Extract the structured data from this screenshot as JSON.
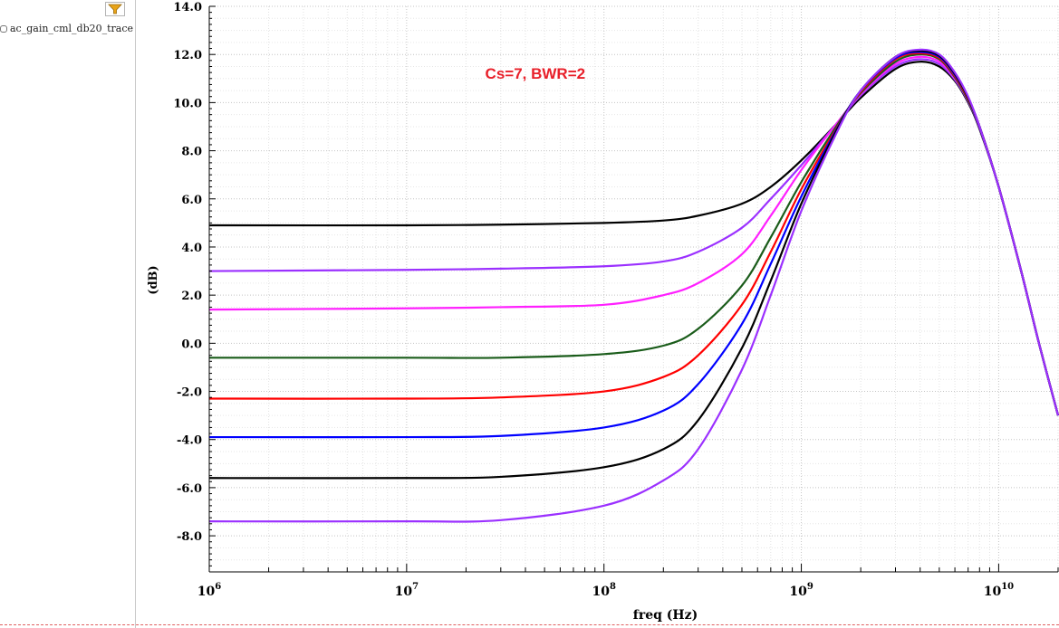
{
  "legend": {
    "filter_icon": "filter-icon",
    "trace_name": "ac_gain_cml_db20_trace"
  },
  "colors": {
    "annotation": "#e8202a",
    "grid": "#d9d9d9",
    "axis": "#000000"
  },
  "chart_data": {
    "type": "line",
    "title": "",
    "xlabel": "freq (Hz)",
    "ylabel": "(dB)",
    "x_scale": "log",
    "xlim": [
      1000000,
      20000000000
    ],
    "ylim": [
      -9.5,
      14.0
    ],
    "grid": true,
    "x_tick_labels": [
      {
        "value": 1000000,
        "base": "10",
        "exp": "6"
      },
      {
        "value": 10000000,
        "base": "10",
        "exp": "7"
      },
      {
        "value": 100000000,
        "base": "10",
        "exp": "8"
      },
      {
        "value": 1000000000,
        "base": "10",
        "exp": "9"
      },
      {
        "value": 10000000000,
        "base": "10",
        "exp": "10"
      }
    ],
    "y_ticks": [
      14.0,
      12.0,
      10.0,
      8.0,
      6.0,
      4.0,
      2.0,
      0.0,
      -2.0,
      -4.0,
      -6.0,
      -8.0
    ],
    "y_tick_labels": [
      "14.0",
      "12.0",
      "10.0",
      "8.0",
      "6.0",
      "4.0",
      "2.0",
      "0.0",
      "-2.0",
      "-4.0",
      "-6.0",
      "-8.0"
    ],
    "annotation": {
      "text": "Cs=7, BWR=2",
      "x": 25000000,
      "y": 11.0
    },
    "x": [
      1000000,
      10000000,
      30000000,
      100000000,
      200000000,
      300000000,
      500000000,
      700000000,
      1000000000,
      1500000000,
      2000000000,
      3000000000,
      4000000000,
      5000000000,
      6000000000,
      7000000000,
      8000000000,
      10000000000,
      13000000000,
      16000000000,
      20000000000
    ],
    "series": [
      {
        "color": "#000000",
        "values": [
          4.9,
          4.9,
          4.93,
          5.0,
          5.1,
          5.3,
          5.8,
          6.5,
          7.6,
          9.1,
          10.2,
          11.4,
          11.7,
          11.5,
          10.9,
          10.0,
          8.9,
          6.5,
          3.0,
          0.0,
          -3.0
        ]
      },
      {
        "color": "#9b30ff",
        "values": [
          3.0,
          3.05,
          3.1,
          3.2,
          3.4,
          3.8,
          4.8,
          6.0,
          7.4,
          9.1,
          10.3,
          11.5,
          11.8,
          11.6,
          10.95,
          10.05,
          8.95,
          6.5,
          3.0,
          0.0,
          -3.0
        ]
      },
      {
        "color": "#ff20ff",
        "values": [
          1.4,
          1.45,
          1.5,
          1.6,
          2.0,
          2.5,
          3.7,
          5.3,
          7.2,
          9.1,
          10.35,
          11.6,
          11.9,
          11.7,
          11.0,
          10.1,
          9.0,
          6.5,
          3.0,
          0.0,
          -3.0
        ]
      },
      {
        "color": "#1a5c1a",
        "values": [
          -0.6,
          -0.6,
          -0.6,
          -0.45,
          -0.1,
          0.6,
          2.4,
          4.4,
          6.7,
          9.0,
          10.4,
          11.7,
          12.0,
          11.8,
          11.05,
          10.1,
          9.0,
          6.5,
          3.0,
          0.0,
          -3.0
        ]
      },
      {
        "color": "#ff0000",
        "values": [
          -2.3,
          -2.3,
          -2.25,
          -2.0,
          -1.4,
          -0.5,
          1.6,
          3.8,
          6.4,
          8.9,
          10.45,
          11.8,
          12.05,
          11.85,
          11.1,
          10.15,
          9.0,
          6.5,
          3.0,
          0.0,
          -3.0
        ]
      },
      {
        "color": "#0000ff",
        "values": [
          -3.9,
          -3.9,
          -3.85,
          -3.5,
          -2.8,
          -1.7,
          0.8,
          3.3,
          6.1,
          8.85,
          10.5,
          11.85,
          12.1,
          11.9,
          11.15,
          10.2,
          9.0,
          6.5,
          3.0,
          0.0,
          -3.0
        ]
      },
      {
        "color": "#000000",
        "values": [
          -5.6,
          -5.6,
          -5.55,
          -5.15,
          -4.4,
          -3.2,
          -0.2,
          2.6,
          5.8,
          8.8,
          10.5,
          11.9,
          12.15,
          11.95,
          11.2,
          10.2,
          9.0,
          6.5,
          3.0,
          0.0,
          -3.0
        ]
      },
      {
        "color": "#9b30ff",
        "values": [
          -7.4,
          -7.4,
          -7.35,
          -6.75,
          -5.7,
          -4.4,
          -1.1,
          2.0,
          5.5,
          8.7,
          10.5,
          11.9,
          12.2,
          12.0,
          11.25,
          10.25,
          9.0,
          6.5,
          3.0,
          0.0,
          -3.0
        ]
      }
    ]
  }
}
